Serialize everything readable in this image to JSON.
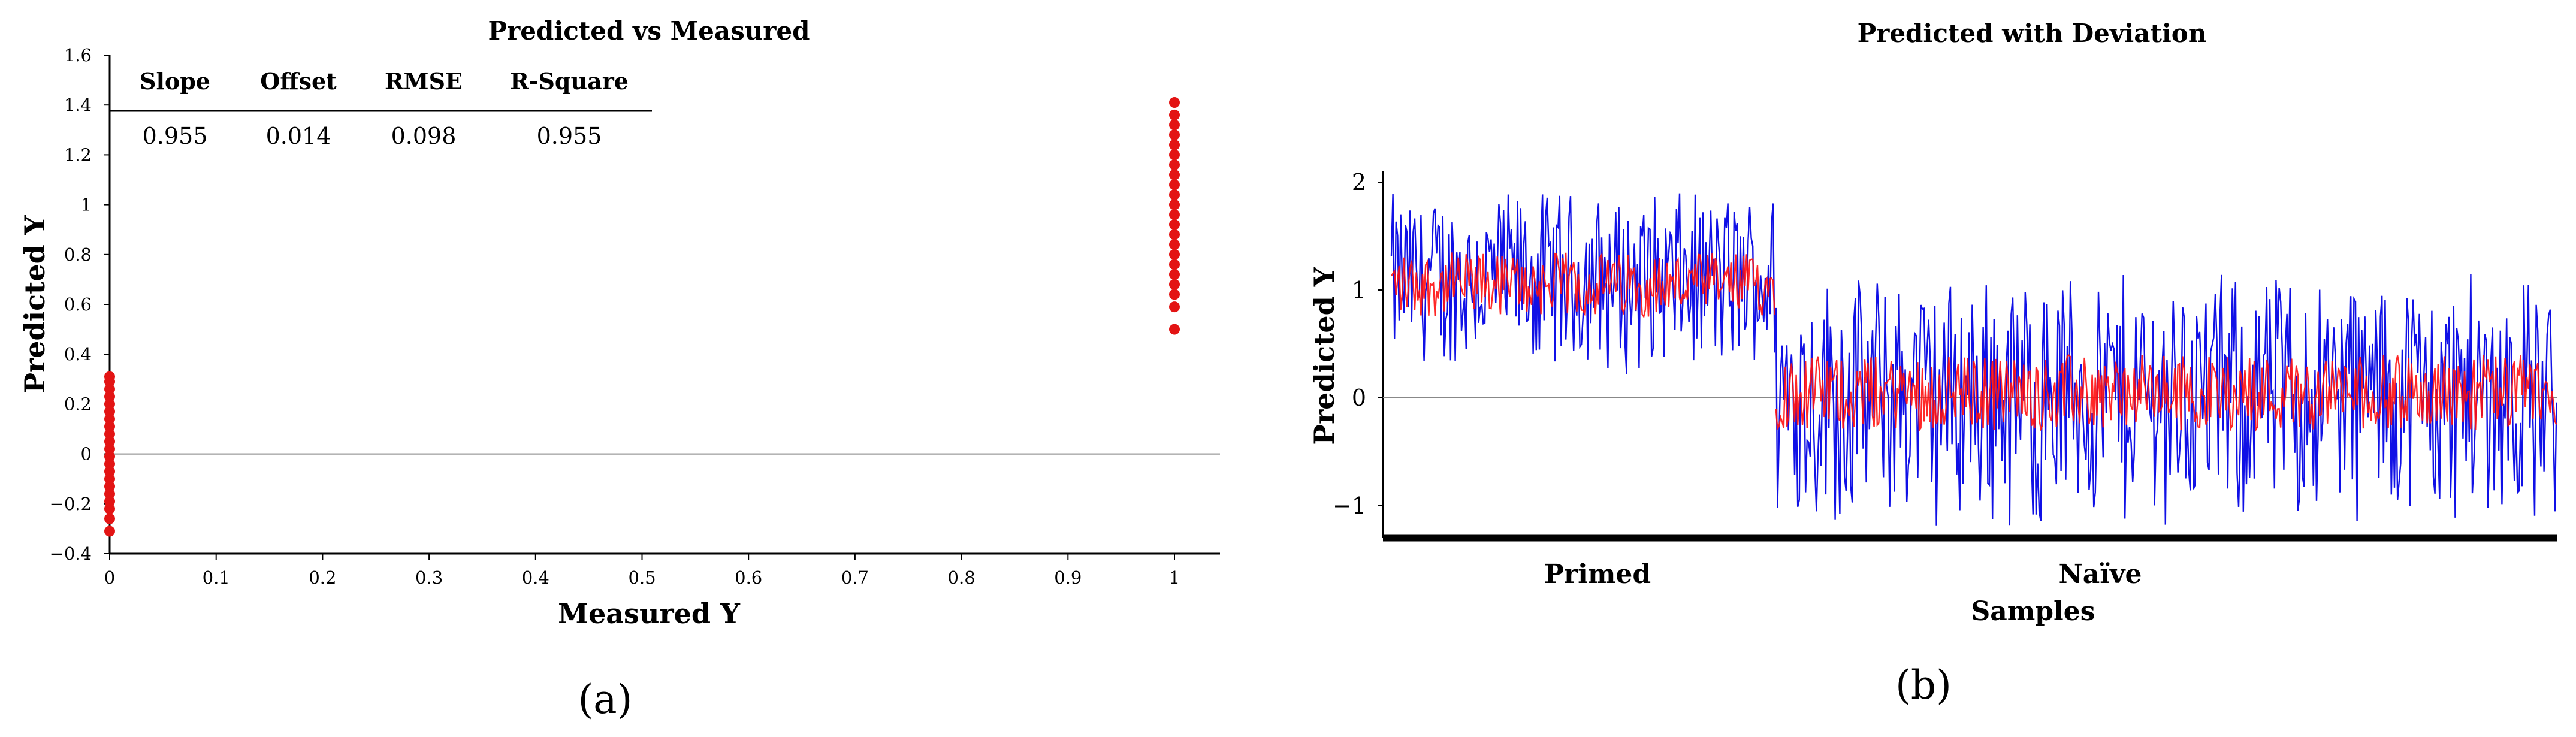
{
  "panels": {
    "a": {
      "label": "(a)"
    },
    "b": {
      "label": "(b)"
    }
  },
  "stats_table": {
    "headers": [
      "Slope",
      "Offset",
      "RMSE",
      "R-Square"
    ],
    "values": [
      "0.955",
      "0.014",
      "0.098",
      "0.955"
    ]
  },
  "chart_data": [
    {
      "type": "scatter",
      "title": "Predicted vs Measured",
      "xlabel": "Measured Y",
      "ylabel": "Predicted Y",
      "xlim": [
        0,
        1
      ],
      "ylim": [
        -0.4,
        1.6
      ],
      "xticks": [
        "0",
        "0.1",
        "0.2",
        "0.3",
        "0.4",
        "0.5",
        "0.6",
        "0.7",
        "0.8",
        "0.9",
        "1"
      ],
      "yticks": [
        "−0.4",
        "−0.2",
        "0",
        "0.2",
        "0.4",
        "0.6",
        "0.8",
        "1",
        "1.2",
        "1.4",
        "1.6"
      ],
      "grid": false,
      "reference_line_y": 0,
      "series": [
        {
          "color": "#e31414",
          "points": [
            {
              "x": 0,
              "y": -0.31
            },
            {
              "x": 0,
              "y": -0.26
            },
            {
              "x": 0,
              "y": -0.22
            },
            {
              "x": 0,
              "y": -0.19
            },
            {
              "x": 0,
              "y": -0.16
            },
            {
              "x": 0,
              "y": -0.13
            },
            {
              "x": 0,
              "y": -0.1
            },
            {
              "x": 0,
              "y": -0.07
            },
            {
              "x": 0,
              "y": -0.04
            },
            {
              "x": 0,
              "y": -0.01
            },
            {
              "x": 0,
              "y": 0.02
            },
            {
              "x": 0,
              "y": 0.05
            },
            {
              "x": 0,
              "y": 0.08
            },
            {
              "x": 0,
              "y": 0.11
            },
            {
              "x": 0,
              "y": 0.14
            },
            {
              "x": 0,
              "y": 0.17
            },
            {
              "x": 0,
              "y": 0.2
            },
            {
              "x": 0,
              "y": 0.23
            },
            {
              "x": 0,
              "y": 0.26
            },
            {
              "x": 0,
              "y": 0.29
            },
            {
              "x": 0,
              "y": 0.31
            },
            {
              "x": 1,
              "y": 0.5
            },
            {
              "x": 1,
              "y": 0.59
            },
            {
              "x": 1,
              "y": 0.64
            },
            {
              "x": 1,
              "y": 0.68
            },
            {
              "x": 1,
              "y": 0.72
            },
            {
              "x": 1,
              "y": 0.76
            },
            {
              "x": 1,
              "y": 0.8
            },
            {
              "x": 1,
              "y": 0.84
            },
            {
              "x": 1,
              "y": 0.88
            },
            {
              "x": 1,
              "y": 0.92
            },
            {
              "x": 1,
              "y": 0.96
            },
            {
              "x": 1,
              "y": 1.0
            },
            {
              "x": 1,
              "y": 1.04
            },
            {
              "x": 1,
              "y": 1.08
            },
            {
              "x": 1,
              "y": 1.12
            },
            {
              "x": 1,
              "y": 1.16
            },
            {
              "x": 1,
              "y": 1.2
            },
            {
              "x": 1,
              "y": 1.24
            },
            {
              "x": 1,
              "y": 1.28
            },
            {
              "x": 1,
              "y": 1.32
            },
            {
              "x": 1,
              "y": 1.36
            },
            {
              "x": 1,
              "y": 1.41
            }
          ]
        }
      ]
    },
    {
      "type": "line",
      "title": "Predicted with Deviation",
      "xlabel": "Samples",
      "ylabel": "Predicted Y",
      "categories": [
        "Primed",
        "Naïve"
      ],
      "ylim": [
        -1.3,
        2.1
      ],
      "yticks": [
        "2",
        "1",
        "0",
        "−1"
      ],
      "grid": false,
      "reference_line_y": 0,
      "groups": [
        {
          "label": "Primed",
          "start": 0,
          "end": 0.33,
          "predicted_mean": 1.05,
          "predicted_range": [
            0.75,
            1.35
          ],
          "deviation_range": [
            0.2,
            1.9
          ]
        },
        {
          "label": "Naïve",
          "start": 0.33,
          "end": 1.0,
          "predicted_mean": 0.05,
          "predicted_range": [
            -0.3,
            0.4
          ],
          "deviation_range": [
            -1.2,
            1.15
          ]
        }
      ],
      "series": [
        {
          "role": "deviation",
          "color": "#1010e6"
        },
        {
          "role": "predicted",
          "color": "#ff1010"
        }
      ]
    }
  ]
}
